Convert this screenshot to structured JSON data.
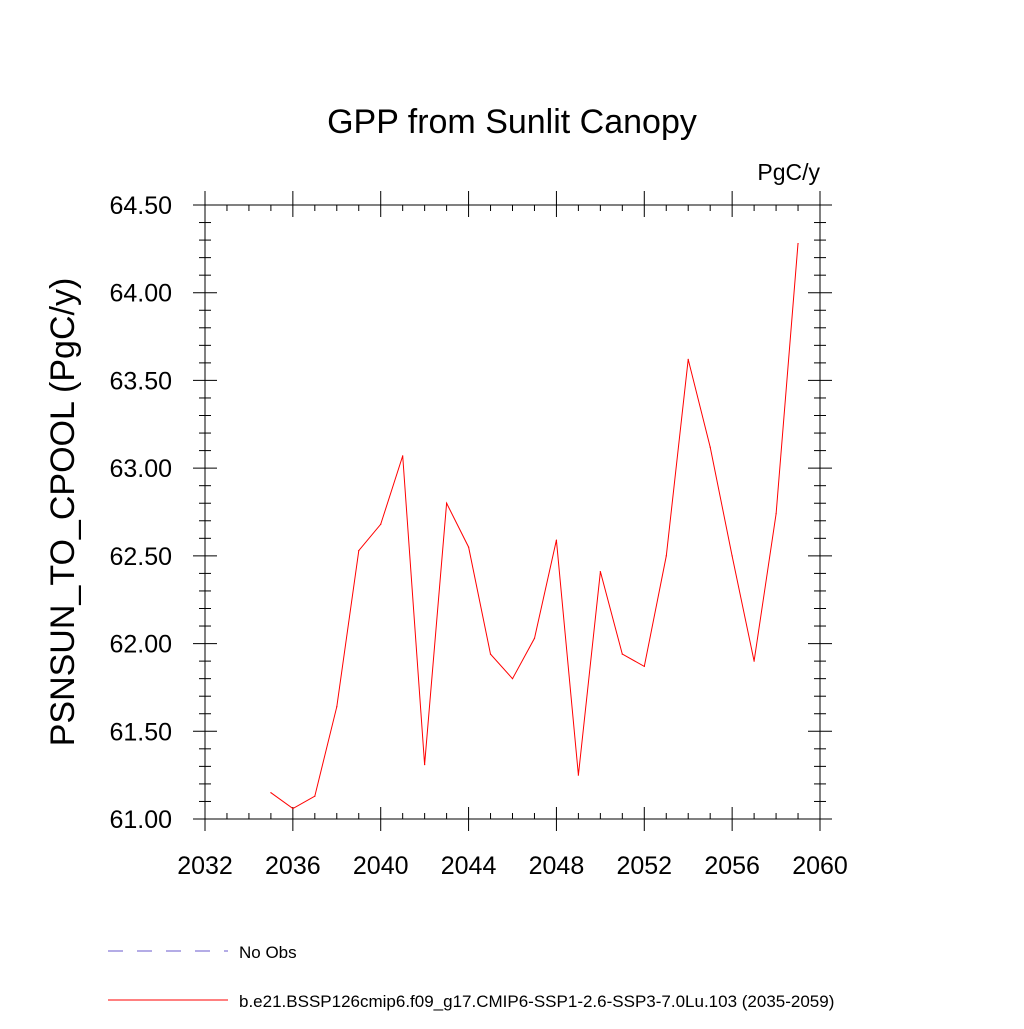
{
  "chart_data": {
    "type": "line",
    "title": "GPP from Sunlit Canopy",
    "units_label": "PgC/y",
    "ylabel": "PSNSUN_TO_CPOOL  (PgC/y)",
    "xlabel": "",
    "xlim": [
      2032,
      2060
    ],
    "ylim": [
      61.0,
      64.5
    ],
    "x_ticks": [
      2032,
      2036,
      2040,
      2044,
      2048,
      2052,
      2056,
      2060
    ],
    "x_tick_labels": [
      "2032",
      "2036",
      "2040",
      "2044",
      "2048",
      "2052",
      "2056",
      "2060"
    ],
    "y_ticks": [
      61.0,
      61.5,
      62.0,
      62.5,
      63.0,
      63.5,
      64.0,
      64.5
    ],
    "y_tick_labels": [
      "61.00",
      "61.50",
      "62.00",
      "62.50",
      "63.00",
      "63.50",
      "64.00",
      "64.50"
    ],
    "grid": false,
    "legend_position": "bottom",
    "legend": [
      {
        "label": "No Obs",
        "color": "#6a5acd",
        "style": "dashed"
      },
      {
        "label": "b.e21.BSSP126cmip6.f09_g17.CMIP6-SSP1-2.6-SSP3-7.0Lu.103 (2035-2059)",
        "color": "#ff0000",
        "style": "solid"
      }
    ],
    "series": [
      {
        "name": "b.e21.BSSP126cmip6.f09_g17.CMIP6-SSP1-2.6-SSP3-7.0Lu.103 (2035-2059)",
        "color": "#ff0000",
        "x": [
          2035,
          2036,
          2037,
          2038,
          2039,
          2040,
          2041,
          2042,
          2043,
          2044,
          2045,
          2046,
          2047,
          2048,
          2049,
          2050,
          2051,
          2052,
          2053,
          2054,
          2055,
          2056,
          2057,
          2058,
          2059
        ],
        "y": [
          61.15,
          61.06,
          61.13,
          61.64,
          62.53,
          62.68,
          63.07,
          61.31,
          62.8,
          62.55,
          61.94,
          61.8,
          62.03,
          62.59,
          61.25,
          62.41,
          61.94,
          61.87,
          62.5,
          63.62,
          63.12,
          62.5,
          61.9,
          62.74,
          64.28
        ]
      }
    ]
  }
}
